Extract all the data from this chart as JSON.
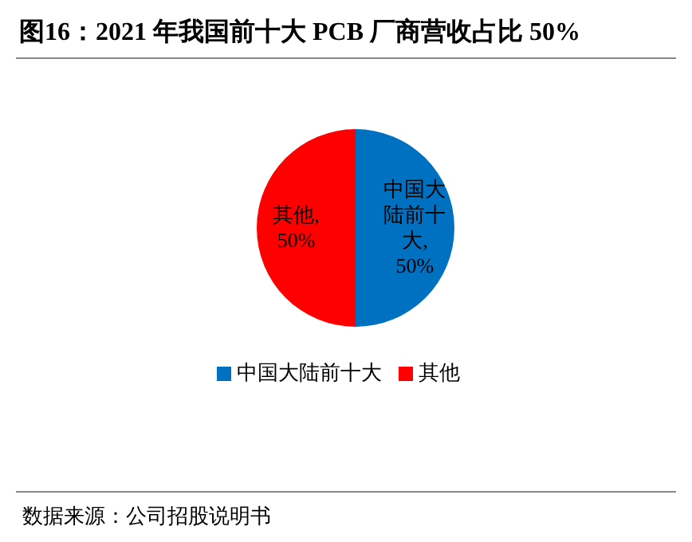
{
  "chart_data": {
    "type": "pie",
    "title": "图16：2021 年我国前十大 PCB 厂商营收占比 50%",
    "categories": [
      "中国大陆前十大",
      "其他"
    ],
    "values": [
      50,
      50
    ],
    "value_labels": [
      "中国大陆前十大, 50%",
      "其他, 50%"
    ],
    "colors": [
      "#0070c0",
      "#ff0000"
    ],
    "legend": "bottom",
    "annotations": [
      "数据来源：公司招股说明书"
    ]
  }
}
